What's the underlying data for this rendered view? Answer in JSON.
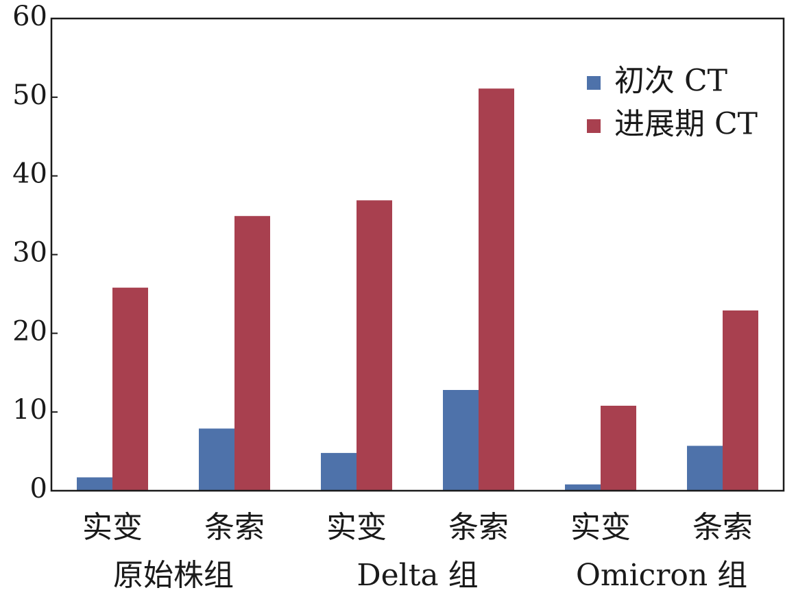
{
  "chart_data": {
    "type": "bar",
    "title": "",
    "xlabel": "",
    "ylabel": "",
    "ylim": [
      0,
      60
    ],
    "yticks": [
      0,
      10,
      20,
      30,
      40,
      50,
      60
    ],
    "categories": [
      "实变",
      "条索",
      "实变",
      "条索",
      "实变",
      "条索"
    ],
    "groups": [
      {
        "label": "原始株组",
        "categories": [
          "实变",
          "条索"
        ]
      },
      {
        "label": "Delta 组",
        "categories": [
          "实变",
          "条索"
        ]
      },
      {
        "label": "Omicron 组",
        "categories": [
          "实变",
          "条索"
        ]
      }
    ],
    "series": [
      {
        "name": "初次 CT",
        "color": "#4e72aa",
        "values": [
          1.7,
          7.9,
          4.8,
          12.8,
          0.8,
          5.7
        ]
      },
      {
        "name": "进展期 CT",
        "color": "#a8404f",
        "values": [
          25.8,
          34.9,
          36.9,
          51.1,
          10.8,
          22.9
        ]
      }
    ],
    "legend_position": "top-right",
    "grid": false
  }
}
